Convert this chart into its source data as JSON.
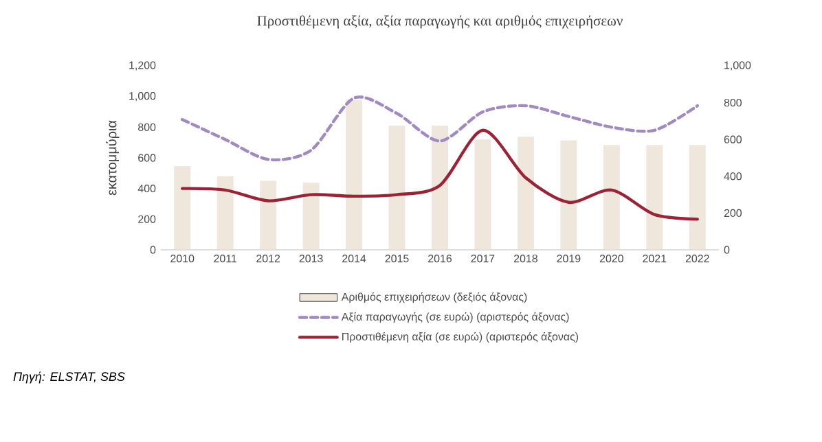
{
  "chart_data": {
    "type": "bar",
    "title": "Προστιθέμενη αξία, αξία παραγωγής και αριθμός επιχειρήσεων",
    "ylabel": "εκατομμύρια",
    "categories": [
      "2010",
      "2011",
      "2012",
      "2013",
      "2014",
      "2015",
      "2016",
      "2017",
      "2018",
      "2019",
      "2020",
      "2021",
      "2022"
    ],
    "series": [
      {
        "name": "Αριθμός επιχειρήσεων (δεξιός άξονας)",
        "axis": "y2",
        "color": "#efe6dc",
        "values": [
          455,
          400,
          375,
          365,
          815,
          675,
          675,
          600,
          615,
          595,
          570,
          570,
          570
        ]
      },
      {
        "name": "Αξία παραγωγής (σε ευρώ) (αριστερός άξονας)",
        "type": "line",
        "line_style": "dashed",
        "color": "#a08ac0",
        "values": [
          850,
          720,
          590,
          650,
          990,
          890,
          710,
          900,
          940,
          870,
          800,
          780,
          940
        ]
      },
      {
        "name": "Προστιθέμενη αξία (σε ευρώ) (αριστερός άξονας)",
        "type": "line",
        "line_style": "solid",
        "color": "#9b2335",
        "values": [
          400,
          390,
          320,
          360,
          350,
          360,
          420,
          780,
          470,
          310,
          390,
          230,
          200
        ]
      }
    ],
    "ylim": [
      0,
      1200
    ],
    "yticks": [
      0,
      200,
      400,
      600,
      800,
      {
        "value": 1000,
        "label": "1,000"
      },
      {
        "value": 1200,
        "label": "1,200"
      }
    ],
    "y2lim": [
      0,
      1000
    ],
    "y2ticks": [
      0,
      200,
      400,
      600,
      800,
      {
        "value": 1000,
        "label": "1,000"
      }
    ],
    "marker": "none",
    "legend": "bottom",
    "annotations": [
      "*Πηγή: ELSTAT, SBS*"
    ]
  }
}
